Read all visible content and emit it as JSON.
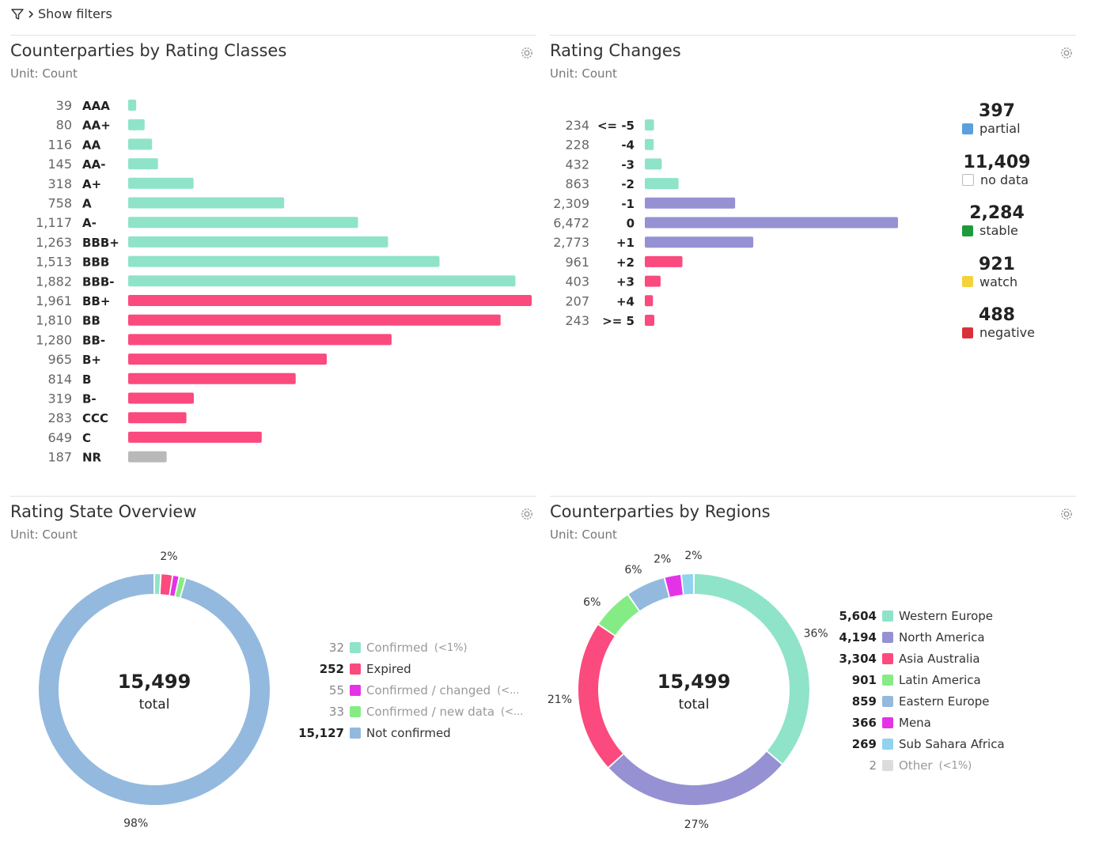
{
  "filters": {
    "label": "Show filters"
  },
  "colors": {
    "teal": "#8fe3c9",
    "purple": "#9591d3",
    "pink": "#fb4a7d",
    "gray": "#b9b9b9",
    "blue": "#94b9de",
    "magenta": "#e433e6",
    "green": "#85ec85",
    "skyblue": "#8fd3ef",
    "lightgray": "#dcdcdc",
    "partial": "#5a9fde",
    "stable": "#1f9a3a",
    "watch": "#f4d239",
    "negative": "#d9313b"
  },
  "chart_data": [
    {
      "type": "bar",
      "orientation": "horizontal",
      "title": "Counterparties by Rating Classes",
      "unit": "Unit: Count",
      "categories": [
        "AAA",
        "AA+",
        "AA",
        "AA-",
        "A+",
        "A",
        "A-",
        "BBB+",
        "BBB",
        "BBB-",
        "BB+",
        "BB",
        "BB-",
        "B+",
        "B",
        "B-",
        "CCC",
        "C",
        "NR"
      ],
      "values": [
        39,
        80,
        116,
        145,
        318,
        758,
        1117,
        1263,
        1513,
        1882,
        1961,
        1810,
        1280,
        965,
        814,
        319,
        283,
        649,
        187
      ],
      "value_labels": [
        "39",
        "80",
        "116",
        "145",
        "318",
        "758",
        "1,117",
        "1,263",
        "1,513",
        "1,882",
        "1,961",
        "1,810",
        "1,280",
        "965",
        "814",
        "319",
        "283",
        "649",
        "187"
      ],
      "bar_colors": [
        "teal",
        "teal",
        "teal",
        "teal",
        "teal",
        "teal",
        "teal",
        "teal",
        "teal",
        "teal",
        "pink",
        "pink",
        "pink",
        "pink",
        "pink",
        "pink",
        "pink",
        "pink",
        "gray"
      ],
      "xlim": [
        0,
        1961
      ]
    },
    {
      "type": "bar",
      "orientation": "horizontal",
      "title": "Rating Changes",
      "unit": "Unit: Count",
      "categories": [
        "<= -5",
        "-4",
        "-3",
        "-2",
        "-1",
        "0",
        "+1",
        "+2",
        "+3",
        "+4",
        ">= 5"
      ],
      "values": [
        234,
        228,
        432,
        863,
        2309,
        6472,
        2773,
        961,
        403,
        207,
        243
      ],
      "value_labels": [
        "234",
        "228",
        "432",
        "863",
        "2,309",
        "6,472",
        "2,773",
        "961",
        "403",
        "207",
        "243"
      ],
      "bar_colors": [
        "teal",
        "teal",
        "teal",
        "teal",
        "purple",
        "purple",
        "purple",
        "pink",
        "pink",
        "pink",
        "pink"
      ],
      "side_legend": [
        {
          "value": "397",
          "label": "partial",
          "color": "partial"
        },
        {
          "value": "11,409",
          "label": "no data",
          "color": "none"
        },
        {
          "value": "2,284",
          "label": "stable",
          "color": "stable"
        },
        {
          "value": "921",
          "label": "watch",
          "color": "watch"
        },
        {
          "value": "488",
          "label": "negative",
          "color": "negative"
        }
      ]
    },
    {
      "type": "pie",
      "donut": true,
      "title": "Rating State Overview",
      "unit": "Unit: Count",
      "center_value": "15,499",
      "center_label": "total",
      "slices": [
        {
          "name": "Confirmed",
          "value": 32,
          "label": "32",
          "color": "teal",
          "suffix": "(<1%)",
          "muted": true
        },
        {
          "name": "Expired",
          "value": 252,
          "label": "252",
          "color": "pink",
          "suffix": "",
          "muted": false
        },
        {
          "name": "Confirmed / changed",
          "value": 55,
          "label": "55",
          "color": "magenta",
          "suffix": "(<...",
          "muted": true
        },
        {
          "name": "Confirmed / new data",
          "value": 33,
          "label": "33",
          "color": "green",
          "suffix": "(<...",
          "muted": true
        },
        {
          "name": "Not confirmed",
          "value": 15127,
          "label": "15,127",
          "color": "blue",
          "suffix": "",
          "muted": false
        }
      ],
      "pct_labels": [
        {
          "text": "2%",
          "slice": 1
        },
        {
          "text": "98%",
          "slice": 4
        }
      ]
    },
    {
      "type": "pie",
      "donut": true,
      "title": "Counterparties by Regions",
      "unit": "Unit: Count",
      "center_value": "15,499",
      "center_label": "total",
      "slices": [
        {
          "name": "Western Europe",
          "value": 5604,
          "label": "5,604",
          "color": "teal",
          "suffix": "",
          "muted": false
        },
        {
          "name": "North America",
          "value": 4194,
          "label": "4,194",
          "color": "purple",
          "suffix": "",
          "muted": false
        },
        {
          "name": "Asia Australia",
          "value": 3304,
          "label": "3,304",
          "color": "pink",
          "suffix": "",
          "muted": false
        },
        {
          "name": "Latin America",
          "value": 901,
          "label": "901",
          "color": "green",
          "suffix": "",
          "muted": false
        },
        {
          "name": "Eastern Europe",
          "value": 859,
          "label": "859",
          "color": "blue",
          "suffix": "",
          "muted": false
        },
        {
          "name": "Mena",
          "value": 366,
          "label": "366",
          "color": "magenta",
          "suffix": "",
          "muted": false
        },
        {
          "name": "Sub Sahara Africa",
          "value": 269,
          "label": "269",
          "color": "skyblue",
          "suffix": "",
          "muted": false
        },
        {
          "name": "Other",
          "value": 2,
          "label": "2",
          "color": "lightgray",
          "suffix": "(<1%)",
          "muted": true
        }
      ],
      "pct_labels": [
        {
          "text": "36%",
          "slice": 0
        },
        {
          "text": "27%",
          "slice": 1
        },
        {
          "text": "21%",
          "slice": 2
        },
        {
          "text": "6%",
          "slice": 3
        },
        {
          "text": "6%",
          "slice": 4
        },
        {
          "text": "2%",
          "slice": 5
        },
        {
          "text": "2%",
          "slice": 6
        }
      ]
    }
  ]
}
